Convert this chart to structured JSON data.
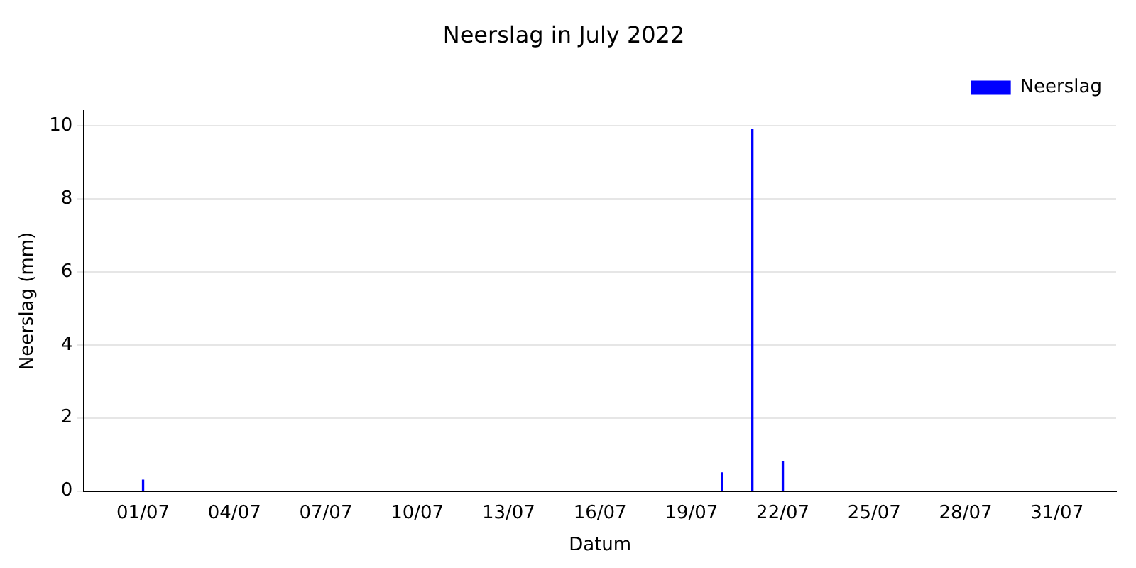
{
  "chart_data": {
    "type": "bar",
    "title": "Neerslag in July 2022",
    "xlabel": "Datum",
    "ylabel": "Neerslag (mm)",
    "x": [
      "2022-07-01",
      "2022-07-20",
      "2022-07-21",
      "2022-07-22"
    ],
    "series": [
      {
        "name": "Neerslag",
        "color": "#0000ff",
        "values": [
          0.3,
          0.5,
          9.9,
          0.8
        ]
      }
    ],
    "xlim": [
      "2022-06-29T01:26",
      "2022-08-01T22:34"
    ],
    "xticks": [
      {
        "value": "2022-07-01",
        "label": "01/07"
      },
      {
        "value": "2022-07-04",
        "label": "04/07"
      },
      {
        "value": "2022-07-07",
        "label": "07/07"
      },
      {
        "value": "2022-07-10",
        "label": "10/07"
      },
      {
        "value": "2022-07-13",
        "label": "13/07"
      },
      {
        "value": "2022-07-16",
        "label": "16/07"
      },
      {
        "value": "2022-07-19",
        "label": "19/07"
      },
      {
        "value": "2022-07-22",
        "label": "22/07"
      },
      {
        "value": "2022-07-25",
        "label": "25/07"
      },
      {
        "value": "2022-07-28",
        "label": "28/07"
      },
      {
        "value": "2022-07-31",
        "label": "31/07"
      }
    ],
    "ylim": [
      0,
      10.4
    ],
    "yticks": [
      0,
      2,
      4,
      6,
      8,
      10
    ],
    "grid": "y",
    "legend": "top right"
  }
}
